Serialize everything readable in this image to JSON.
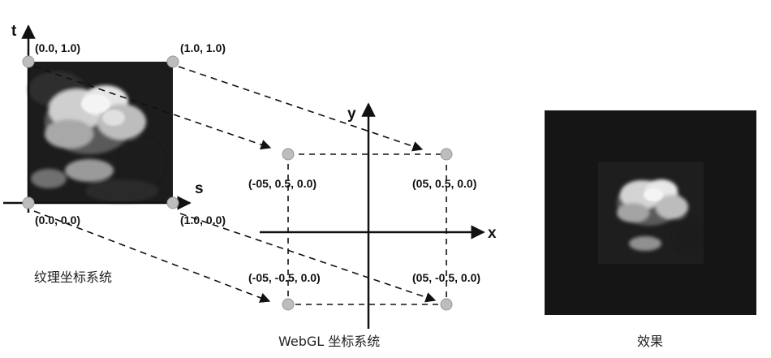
{
  "texture": {
    "axis_s": "s",
    "axis_t": "t",
    "corners": [
      "(0.0, 1.0)",
      "(1.0, 1.0)",
      "(0.0, 0.0)",
      "(1.0, 0.0)"
    ],
    "caption": "纹理坐标系统"
  },
  "webgl": {
    "axis_x": "x",
    "axis_y": "y",
    "corners": [
      "(-05, 0.5, 0.0)",
      "(05, 0.5, 0.0)",
      "(-05, -0.5, 0.0)",
      "(05, -0.5, 0.0)"
    ],
    "caption": "WebGL 坐标系统"
  },
  "result": {
    "caption": "效果"
  }
}
